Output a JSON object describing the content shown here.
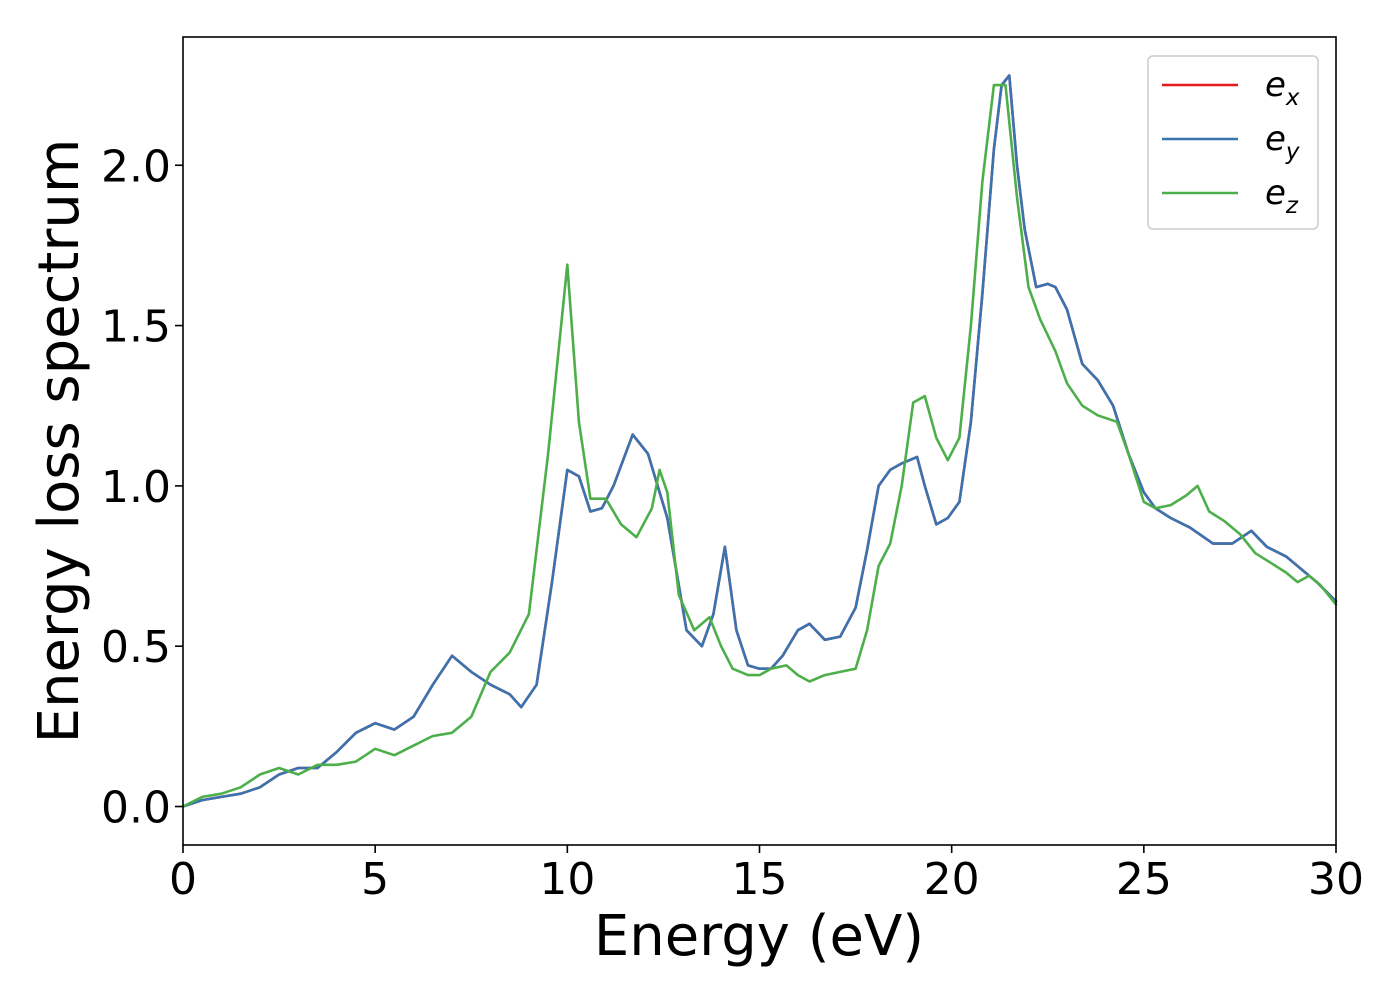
{
  "chart_data": {
    "type": "line",
    "title": "",
    "xlabel": "Energy (eV)",
    "ylabel": "Energy loss spectrum",
    "xlim": [
      0,
      30
    ],
    "ylim": [
      -0.12,
      2.4
    ],
    "xticks": [
      0,
      5,
      10,
      15,
      20,
      25,
      30
    ],
    "xtick_labels": [
      "0",
      "5",
      "10",
      "15",
      "20",
      "25",
      "30"
    ],
    "yticks": [
      0.0,
      0.5,
      1.0,
      1.5,
      2.0
    ],
    "ytick_labels": [
      "0.0",
      "0.5",
      "1.0",
      "1.5",
      "2.0"
    ],
    "grid": false,
    "legend_position": "top-right",
    "series": [
      {
        "name": "e_x",
        "label_main": "e",
        "label_sub": "x",
        "color": "#e41a1c",
        "x": [
          0,
          0.5,
          1,
          1.5,
          2,
          2.5,
          3,
          3.5,
          4,
          4.5,
          5,
          5.5,
          6,
          6.5,
          7,
          7.5,
          8,
          8.5,
          8.8,
          9.2,
          9.6,
          10,
          10.3,
          10.6,
          10.9,
          11.2,
          11.7,
          12.1,
          12.6,
          13.1,
          13.5,
          13.8,
          14.1,
          14.4,
          14.7,
          15,
          15.3,
          15.6,
          16,
          16.3,
          16.7,
          17.1,
          17.5,
          17.8,
          18.1,
          18.4,
          18.7,
          19.1,
          19.3,
          19.6,
          19.9,
          20.2,
          20.5,
          20.8,
          21.1,
          21.3,
          21.5,
          21.7,
          21.9,
          22.2,
          22.5,
          22.7,
          23,
          23.4,
          23.8,
          24.2,
          24.6,
          25,
          25.3,
          25.7,
          26.2,
          26.8,
          27.3,
          27.8,
          28.2,
          28.7,
          29.1,
          29.5,
          30
        ],
        "values": [
          0.0,
          0.02,
          0.03,
          0.04,
          0.06,
          0.1,
          0.12,
          0.12,
          0.17,
          0.23,
          0.26,
          0.24,
          0.28,
          0.38,
          0.47,
          0.42,
          0.38,
          0.35,
          0.31,
          0.38,
          0.7,
          1.05,
          1.03,
          0.92,
          0.93,
          1.0,
          1.16,
          1.1,
          0.9,
          0.55,
          0.5,
          0.6,
          0.81,
          0.55,
          0.44,
          0.43,
          0.43,
          0.47,
          0.55,
          0.57,
          0.52,
          0.53,
          0.62,
          0.8,
          1.0,
          1.05,
          1.07,
          1.09,
          1.0,
          0.88,
          0.9,
          0.95,
          1.2,
          1.6,
          2.05,
          2.25,
          2.28,
          2.0,
          1.8,
          1.62,
          1.63,
          1.62,
          1.55,
          1.38,
          1.33,
          1.25,
          1.1,
          0.98,
          0.93,
          0.9,
          0.87,
          0.82,
          0.82,
          0.86,
          0.81,
          0.78,
          0.74,
          0.7,
          0.64
        ]
      },
      {
        "name": "e_y",
        "label_main": "e",
        "label_sub": "y",
        "color": "#3a74b0",
        "x": [
          0,
          0.5,
          1,
          1.5,
          2,
          2.5,
          3,
          3.5,
          4,
          4.5,
          5,
          5.5,
          6,
          6.5,
          7,
          7.5,
          8,
          8.5,
          8.8,
          9.2,
          9.6,
          10,
          10.3,
          10.6,
          10.9,
          11.2,
          11.7,
          12.1,
          12.6,
          13.1,
          13.5,
          13.8,
          14.1,
          14.4,
          14.7,
          15,
          15.3,
          15.6,
          16,
          16.3,
          16.7,
          17.1,
          17.5,
          17.8,
          18.1,
          18.4,
          18.7,
          19.1,
          19.3,
          19.6,
          19.9,
          20.2,
          20.5,
          20.8,
          21.1,
          21.3,
          21.5,
          21.7,
          21.9,
          22.2,
          22.5,
          22.7,
          23,
          23.4,
          23.8,
          24.2,
          24.6,
          25,
          25.3,
          25.7,
          26.2,
          26.8,
          27.3,
          27.8,
          28.2,
          28.7,
          29.1,
          29.5,
          30
        ],
        "values": [
          0.0,
          0.02,
          0.03,
          0.04,
          0.06,
          0.1,
          0.12,
          0.12,
          0.17,
          0.23,
          0.26,
          0.24,
          0.28,
          0.38,
          0.47,
          0.42,
          0.38,
          0.35,
          0.31,
          0.38,
          0.7,
          1.05,
          1.03,
          0.92,
          0.93,
          1.0,
          1.16,
          1.1,
          0.9,
          0.55,
          0.5,
          0.6,
          0.81,
          0.55,
          0.44,
          0.43,
          0.43,
          0.47,
          0.55,
          0.57,
          0.52,
          0.53,
          0.62,
          0.8,
          1.0,
          1.05,
          1.07,
          1.09,
          1.0,
          0.88,
          0.9,
          0.95,
          1.2,
          1.6,
          2.05,
          2.25,
          2.28,
          2.0,
          1.8,
          1.62,
          1.63,
          1.62,
          1.55,
          1.38,
          1.33,
          1.25,
          1.1,
          0.98,
          0.93,
          0.9,
          0.87,
          0.82,
          0.82,
          0.86,
          0.81,
          0.78,
          0.74,
          0.7,
          0.64
        ]
      },
      {
        "name": "e_z",
        "label_main": "e",
        "label_sub": "z",
        "color": "#4daf4a",
        "x": [
          0,
          0.5,
          1,
          1.5,
          2,
          2.5,
          3,
          3.5,
          4,
          4.5,
          5,
          5.5,
          6,
          6.5,
          7,
          7.5,
          8,
          8.5,
          9,
          9.5,
          10,
          10.3,
          10.6,
          11,
          11.4,
          11.8,
          12.2,
          12.4,
          12.6,
          12.9,
          13.3,
          13.7,
          14,
          14.3,
          14.7,
          15,
          15.3,
          15.7,
          16,
          16.3,
          16.7,
          17.1,
          17.5,
          17.8,
          18.1,
          18.4,
          18.7,
          19,
          19.3,
          19.6,
          19.9,
          20.2,
          20.5,
          20.8,
          21.1,
          21.4,
          21.7,
          22,
          22.3,
          22.7,
          23,
          23.4,
          23.8,
          24.3,
          24.6,
          25,
          25.3,
          25.7,
          26.1,
          26.4,
          26.7,
          27.1,
          27.5,
          27.9,
          28.3,
          28.7,
          29,
          29.3,
          29.6,
          30
        ],
        "values": [
          0.0,
          0.03,
          0.04,
          0.06,
          0.1,
          0.12,
          0.1,
          0.13,
          0.13,
          0.14,
          0.18,
          0.16,
          0.19,
          0.22,
          0.23,
          0.28,
          0.42,
          0.48,
          0.6,
          1.1,
          1.69,
          1.2,
          0.96,
          0.96,
          0.88,
          0.84,
          0.93,
          1.05,
          0.98,
          0.66,
          0.55,
          0.59,
          0.5,
          0.43,
          0.41,
          0.41,
          0.43,
          0.44,
          0.41,
          0.39,
          0.41,
          0.42,
          0.43,
          0.55,
          0.75,
          0.82,
          1.0,
          1.26,
          1.28,
          1.15,
          1.08,
          1.15,
          1.5,
          1.95,
          2.25,
          2.25,
          1.9,
          1.62,
          1.52,
          1.42,
          1.32,
          1.25,
          1.22,
          1.2,
          1.1,
          0.95,
          0.93,
          0.94,
          0.97,
          1.0,
          0.92,
          0.89,
          0.85,
          0.79,
          0.76,
          0.73,
          0.7,
          0.72,
          0.69,
          0.63
        ]
      }
    ]
  }
}
